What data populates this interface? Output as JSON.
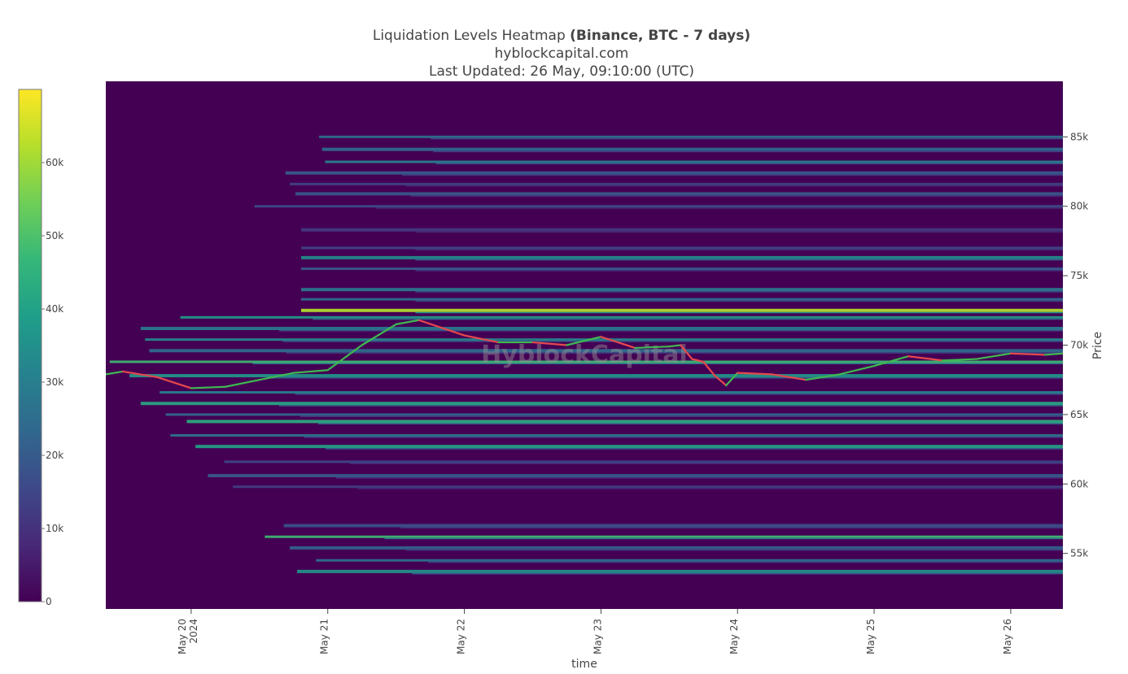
{
  "chart_data": {
    "type": "heatmap",
    "title": "Liquidation Levels Heatmap",
    "title_bold": "(Binance, BTC - 7 days)",
    "subtitle": "hyblockcapital.com",
    "updated": "Last Updated: 26 May, 09:10:00 (UTC)",
    "watermark": "HyblockCapital",
    "xlabel": "time",
    "ylabel": "Price",
    "x_range": [
      "2024-05-19T09:00",
      "2024-05-26T09:10"
    ],
    "ylim": [
      51000,
      89000
    ],
    "x_ticks": [
      {
        "date": "2024-05-20",
        "label": "May 20",
        "sub": "2024"
      },
      {
        "date": "2024-05-21",
        "label": "May 21",
        "sub": ""
      },
      {
        "date": "2024-05-22",
        "label": "May 22",
        "sub": ""
      },
      {
        "date": "2024-05-23",
        "label": "May 23",
        "sub": ""
      },
      {
        "date": "2024-05-24",
        "label": "May 24",
        "sub": ""
      },
      {
        "date": "2024-05-25",
        "label": "May 25",
        "sub": ""
      },
      {
        "date": "2024-05-26",
        "label": "May 26",
        "sub": ""
      }
    ],
    "y_ticks": [
      {
        "value": 55000,
        "label": "55k"
      },
      {
        "value": 60000,
        "label": "60k"
      },
      {
        "value": 65000,
        "label": "65k"
      },
      {
        "value": 70000,
        "label": "70k"
      },
      {
        "value": 75000,
        "label": "75k"
      },
      {
        "value": 80000,
        "label": "80k"
      },
      {
        "value": 85000,
        "label": "85k"
      }
    ],
    "colorscale": {
      "min": 0,
      "max": 70000,
      "stops": [
        "#440154",
        "#482878",
        "#3e4989",
        "#31688e",
        "#26828e",
        "#1f9e89",
        "#35b779",
        "#6ece58",
        "#b5de2b",
        "#fde725"
      ],
      "ticks": [
        {
          "value": 0,
          "label": "0"
        },
        {
          "value": 10000,
          "label": "10k"
        },
        {
          "value": 20000,
          "label": "20k"
        },
        {
          "value": 30000,
          "label": "30k"
        },
        {
          "value": 40000,
          "label": "40k"
        },
        {
          "value": 50000,
          "label": "50k"
        },
        {
          "value": 60000,
          "label": "60k"
        }
      ]
    },
    "price_series": [
      [
        "2024-05-19T09:00",
        67900
      ],
      [
        "2024-05-19T12:00",
        68100
      ],
      [
        "2024-05-19T18:00",
        67700
      ],
      [
        "2024-05-20T00:00",
        66900
      ],
      [
        "2024-05-20T06:00",
        67000
      ],
      [
        "2024-05-20T12:00",
        67500
      ],
      [
        "2024-05-20T18:00",
        68000
      ],
      [
        "2024-05-21T00:00",
        68200
      ],
      [
        "2024-05-21T06:00",
        70000
      ],
      [
        "2024-05-21T12:00",
        71500
      ],
      [
        "2024-05-21T16:00",
        71800
      ],
      [
        "2024-05-22T00:00",
        70700
      ],
      [
        "2024-05-22T06:00",
        70200
      ],
      [
        "2024-05-22T12:00",
        70200
      ],
      [
        "2024-05-22T18:00",
        70000
      ],
      [
        "2024-05-23T00:00",
        70600
      ],
      [
        "2024-05-23T06:00",
        69800
      ],
      [
        "2024-05-23T12:00",
        69900
      ],
      [
        "2024-05-23T14:00",
        70000
      ],
      [
        "2024-05-23T16:00",
        69000
      ],
      [
        "2024-05-23T18:00",
        68800
      ],
      [
        "2024-05-23T20:00",
        67800
      ],
      [
        "2024-05-23T22:00",
        67100
      ],
      [
        "2024-05-24T00:00",
        68000
      ],
      [
        "2024-05-24T06:00",
        67900
      ],
      [
        "2024-05-24T12:00",
        67500
      ],
      [
        "2024-05-24T18:00",
        67900
      ],
      [
        "2024-05-25T00:00",
        68500
      ],
      [
        "2024-05-25T06:00",
        69200
      ],
      [
        "2024-05-25T12:00",
        68900
      ],
      [
        "2024-05-25T18:00",
        69000
      ],
      [
        "2024-05-26T00:00",
        69400
      ],
      [
        "2024-05-26T06:00",
        69300
      ],
      [
        "2024-05-26T09:10",
        69400
      ]
    ],
    "liquidation_bands": [
      {
        "price": 85000,
        "intensity": 26000
      },
      {
        "price": 84100,
        "intensity": 24000
      },
      {
        "price": 83200,
        "intensity": 31000
      },
      {
        "price": 82400,
        "intensity": 20000
      },
      {
        "price": 81600,
        "intensity": 14000
      },
      {
        "price": 80900,
        "intensity": 19000
      },
      {
        "price": 80000,
        "intensity": 16000
      },
      {
        "price": 78300,
        "intensity": 12000
      },
      {
        "price": 77000,
        "intensity": 15000
      },
      {
        "price": 76300,
        "intensity": 34000
      },
      {
        "price": 75500,
        "intensity": 20000
      },
      {
        "price": 74000,
        "intensity": 29000
      },
      {
        "price": 73300,
        "intensity": 25000
      },
      {
        "price": 72500,
        "intensity": 62000
      },
      {
        "price": 72000,
        "intensity": 38000
      },
      {
        "price": 71200,
        "intensity": 29000
      },
      {
        "price": 70400,
        "intensity": 33000
      },
      {
        "price": 69600,
        "intensity": 25000
      },
      {
        "price": 68800,
        "intensity": 48000
      },
      {
        "price": 67800,
        "intensity": 37000
      },
      {
        "price": 66600,
        "intensity": 31000
      },
      {
        "price": 65800,
        "intensity": 42000
      },
      {
        "price": 65000,
        "intensity": 23000
      },
      {
        "price": 64500,
        "intensity": 44000
      },
      {
        "price": 63500,
        "intensity": 27000
      },
      {
        "price": 62700,
        "intensity": 40000
      },
      {
        "price": 61600,
        "intensity": 15000
      },
      {
        "price": 60600,
        "intensity": 20000
      },
      {
        "price": 59800,
        "intensity": 13000
      },
      {
        "price": 57000,
        "intensity": 18000
      },
      {
        "price": 56200,
        "intensity": 48000
      },
      {
        "price": 55400,
        "intensity": 22000
      },
      {
        "price": 54500,
        "intensity": 26000
      },
      {
        "price": 53700,
        "intensity": 36000
      }
    ]
  }
}
